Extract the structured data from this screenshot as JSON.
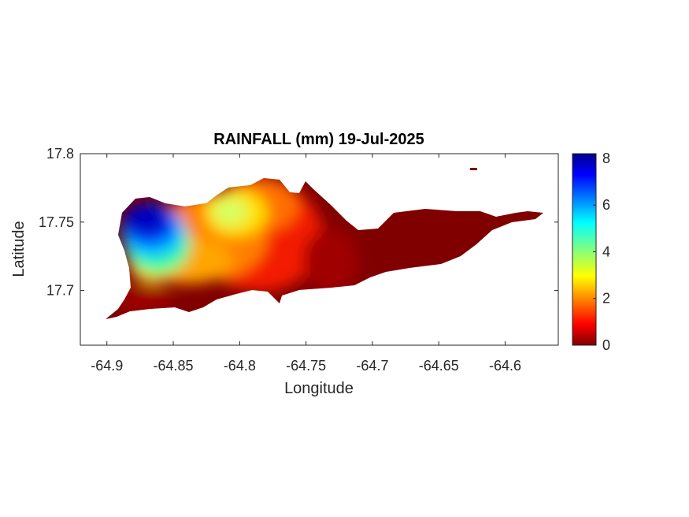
{
  "chart_data": {
    "type": "heatmap",
    "title": "RAINFALL (mm) 19-Jul-2025",
    "xlabel": "Longitude",
    "ylabel": "Latitude",
    "xlim": [
      -64.92,
      -64.56
    ],
    "ylim": [
      17.66,
      17.8
    ],
    "xticks": [
      -64.9,
      -64.85,
      -64.8,
      -64.75,
      -64.7,
      -64.65,
      -64.6
    ],
    "xtick_labels": [
      "-64.9",
      "-64.85",
      "-64.8",
      "-64.75",
      "-64.7",
      "-64.65",
      "-64.6"
    ],
    "yticks": [
      17.7,
      17.75,
      17.8
    ],
    "ytick_labels": [
      "17.7",
      "17.75",
      "17.8"
    ],
    "colorbar": {
      "range": [
        0,
        8.2
      ],
      "ticks": [
        0,
        2,
        4,
        6,
        8
      ],
      "tick_labels": [
        "0",
        "2",
        "4",
        "6",
        "8"
      ],
      "colormap": "jet"
    },
    "rainfall_centers": [
      {
        "lon": -64.868,
        "lat": 17.755,
        "value": 8.2
      },
      {
        "lon": -64.855,
        "lat": 17.725,
        "value": 3.0
      },
      {
        "lon": -64.808,
        "lat": 17.755,
        "value": 3.4
      },
      {
        "lon": -64.78,
        "lat": 17.77,
        "value": 1.2
      },
      {
        "lon": -64.79,
        "lat": 17.715,
        "value": 1.6
      },
      {
        "lon": -64.85,
        "lat": 17.7,
        "value": 0.4
      }
    ],
    "grid": false
  }
}
